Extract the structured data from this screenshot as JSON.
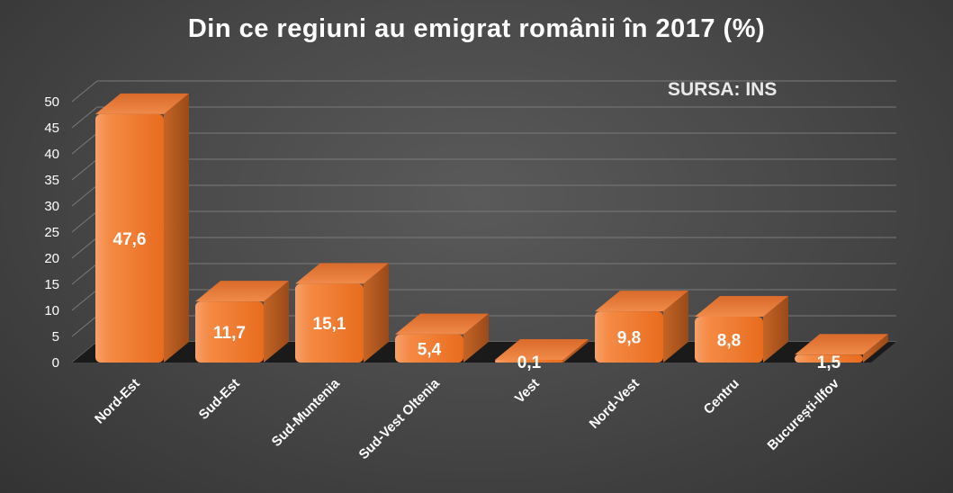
{
  "chart_data": {
    "type": "bar",
    "title": "Din ce regiuni au emigrat românii în 2017 (%)",
    "annotation": "SURSA: INS",
    "categories": [
      "Nord-Est",
      "Sud-Est",
      "Sud-Muntenia",
      "Sud-Vest Oltenia",
      "Vest",
      "Nord-Vest",
      "Centru",
      "București-Ilfov"
    ],
    "values": [
      47.6,
      11.7,
      15.1,
      5.4,
      0.1,
      9.8,
      8.8,
      1.5
    ],
    "value_labels": [
      "47,6",
      "11,7",
      "15,1",
      "5,4",
      "0,1",
      "9,8",
      "8,8",
      "1,5"
    ],
    "yticks": [
      0,
      5,
      10,
      15,
      20,
      25,
      30,
      35,
      40,
      45,
      50
    ],
    "ylim": [
      0,
      50
    ],
    "xlabel": "",
    "ylabel": "",
    "grid": true,
    "legend": "none",
    "colors": {
      "bar_front": "#f07a2e",
      "bar_top": "#e8773a",
      "bar_side": "#b85a22",
      "gridline": "#7a7a7a",
      "floor": "#1a1a1a"
    }
  }
}
